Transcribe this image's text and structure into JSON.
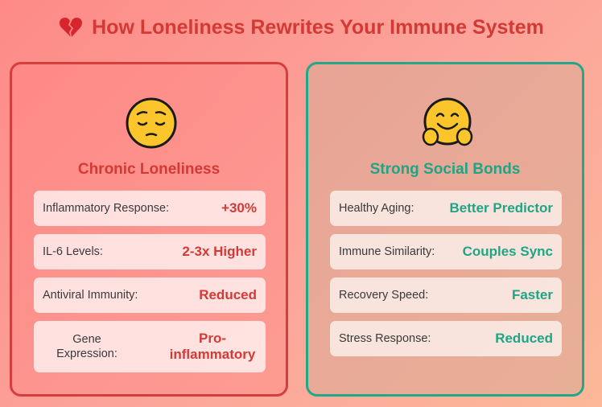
{
  "title": "How Loneliness Rewrites Your Immune System",
  "title_icon": "broken-heart-icon",
  "left_panel": {
    "icon": "pensive-face-icon",
    "heading": "Chronic Loneliness",
    "rows": [
      {
        "label": "Inflammatory Response:",
        "value": "+30%"
      },
      {
        "label": "IL-6 Levels:",
        "value": "2-3x Higher"
      },
      {
        "label": "Antiviral Immunity:",
        "value": "Reduced"
      },
      {
        "label": "Gene Expression:",
        "value": "Pro-inflammatory"
      }
    ]
  },
  "right_panel": {
    "icon": "hugging-face-icon",
    "heading": "Strong Social Bonds",
    "rows": [
      {
        "label": "Healthy Aging:",
        "value": "Better Predictor"
      },
      {
        "label": "Immune Similarity:",
        "value": "Couples Sync"
      },
      {
        "label": "Recovery Speed:",
        "value": "Faster"
      },
      {
        "label": "Stress Response:",
        "value": "Reduced"
      }
    ]
  },
  "colors": {
    "negative_accent": "#d33a36",
    "positive_accent": "#1fa585"
  }
}
